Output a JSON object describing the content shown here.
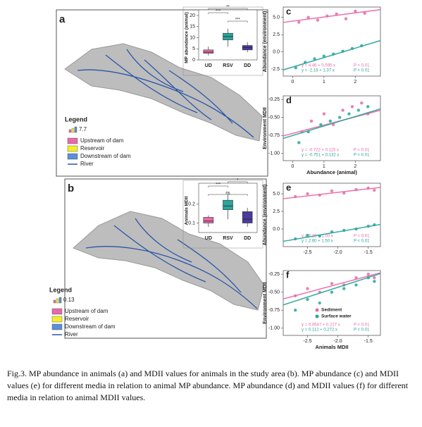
{
  "map_panels": [
    {
      "label": "a",
      "legend_title": "Legend",
      "scale_value": "7.7",
      "legend_items": [
        "Upstream of dam",
        "Reservoir",
        "Downstream of dam",
        "River"
      ]
    },
    {
      "label": "b",
      "legend_title": "Legend",
      "scale_value": "0.13",
      "legend_items": [
        "Upstream of dam",
        "Reservoir",
        "Downstream of dam",
        "River"
      ]
    }
  ],
  "chart_data": [
    {
      "type": "box",
      "ylabel": "MP abundance (animal)",
      "ylim": [
        0,
        20
      ],
      "yticks": [
        0,
        5,
        10,
        15,
        20
      ],
      "categories": [
        "UD",
        "RSV",
        "DD"
      ],
      "boxes": [
        {
          "color": "#e86aa8",
          "min": 2,
          "q1": 3,
          "median": 3.5,
          "q3": 4.5,
          "max": 6
        },
        {
          "color": "#2aa59b",
          "min": 6,
          "q1": 9,
          "median": 10.5,
          "q3": 12,
          "max": 14
        },
        {
          "color": "#4b3b9c",
          "min": 3.5,
          "q1": 4.5,
          "median": 5.5,
          "q3": 6.5,
          "max": 8
        }
      ],
      "comparisons": [
        {
          "pair": [
            "UD",
            "RSV"
          ],
          "label": "***"
        },
        {
          "pair": [
            "UD",
            "DD"
          ],
          "label": "**"
        },
        {
          "pair": [
            "RSV",
            "DD"
          ],
          "label": "***"
        }
      ]
    },
    {
      "type": "box",
      "ylabel": "Animals MDII",
      "ylim": [
        0.05,
        0.28
      ],
      "yticks": [
        0.1,
        0.2
      ],
      "categories": [
        "UD",
        "RSV",
        "DD"
      ],
      "boxes": [
        {
          "color": "#e86aa8",
          "min": 0.08,
          "q1": 0.1,
          "median": 0.11,
          "q3": 0.13,
          "max": 0.14
        },
        {
          "color": "#2aa59b",
          "min": 0.12,
          "q1": 0.17,
          "median": 0.19,
          "q3": 0.22,
          "max": 0.25
        },
        {
          "color": "#4b3b9c",
          "min": 0.08,
          "q1": 0.1,
          "median": 0.12,
          "q3": 0.16,
          "max": 0.18
        }
      ],
      "comparisons": [
        {
          "pair": [
            "UD",
            "RSV"
          ],
          "label": "***"
        },
        {
          "pair": [
            "RSV",
            "DD"
          ],
          "label": "*"
        },
        {
          "pair": [
            "UD",
            "DD"
          ],
          "label": "ns"
        }
      ]
    },
    {
      "type": "scatter",
      "label": "c",
      "ylabel": "Abundance (environment)",
      "xlim": [
        -0.3,
        2.8
      ],
      "xticks": [
        0,
        1,
        2
      ],
      "ylim": [
        -3.5,
        6.5
      ],
      "yticks": [
        -2.5,
        {
          "value": 0,
          "label": "0.0"
        },
        2.5,
        {
          "value": 5,
          "label": "5.0"
        }
      ],
      "legend": false,
      "series": [
        {
          "name": "Sediment",
          "color": "#e86aa8",
          "x": [
            0.2,
            0.5,
            0.8,
            1.1,
            1.4,
            1.7,
            2.0,
            2.3
          ],
          "values": [
            4.3,
            5.0,
            4.6,
            5.2,
            5.5,
            4.8,
            5.9,
            5.6
          ],
          "intercept": 4.46,
          "slope": 0.595,
          "equation": "y = 4.46 + 0.595 x",
          "p_label": "P < 0.01"
        },
        {
          "name": "Surface water",
          "color": "#2aa59b",
          "x": [
            0.1,
            0.4,
            0.7,
            1.0,
            1.3,
            1.6,
            1.9,
            2.2
          ],
          "values": [
            -2.3,
            -1.5,
            -1.0,
            -0.6,
            -0.3,
            0.1,
            0.5,
            0.9
          ],
          "intercept": -2.19,
          "slope": 1.37,
          "equation": "y = -2.19 + 1.37 x",
          "p_label": "P < 0.01"
        }
      ]
    },
    {
      "type": "scatter",
      "label": "d",
      "xlabel": "Abundance (animal)",
      "ylabel": "Environment MDII",
      "xlim": [
        -0.3,
        2.8
      ],
      "xticks": [
        0,
        1,
        2
      ],
      "ylim": [
        -1.1,
        -0.2
      ],
      "yticks": [
        {
          "value": -1,
          "label": "-1.00"
        },
        -0.75,
        {
          "value": -0.5,
          "label": "-0.50"
        },
        -0.25
      ],
      "legend": false,
      "series": [
        {
          "name": "Sediment",
          "color": "#e86aa8",
          "x": [
            0.3,
            0.6,
            1.0,
            1.3,
            1.6,
            1.9,
            2.2,
            2.4
          ],
          "values": [
            -0.7,
            -0.55,
            -0.45,
            -0.6,
            -0.4,
            -0.35,
            -0.3,
            -0.45
          ],
          "intercept": -0.722,
          "slope": 0.115,
          "equation": "y = -0.722 + 0.115 x",
          "p_label": "P < 0.01"
        },
        {
          "name": "Surface water",
          "color": "#2aa59b",
          "x": [
            0.2,
            0.5,
            0.9,
            1.2,
            1.5,
            1.8,
            2.1,
            2.4
          ],
          "values": [
            -0.85,
            -0.7,
            -0.6,
            -0.55,
            -0.5,
            -0.45,
            -0.4,
            -0.35
          ],
          "intercept": -0.751,
          "slope": 0.132,
          "equation": "y = -0.751 + 0.132 x",
          "p_label": "P < 0.01"
        }
      ]
    },
    {
      "type": "scatter",
      "label": "e",
      "ylabel": "Abundance (environment)",
      "xlim": [
        -2.9,
        -1.3
      ],
      "xticks": [
        -2.5,
        {
          "value": -2,
          "label": "-2.0"
        },
        -1.5
      ],
      "ylim": [
        -2.5,
        6.5
      ],
      "yticks": [
        {
          "value": 0,
          "label": "0.0"
        },
        2.5,
        {
          "value": 5,
          "label": "5.0"
        }
      ],
      "legend": false,
      "series": [
        {
          "name": "Sediment",
          "color": "#e86aa8",
          "x": [
            -2.7,
            -2.5,
            -2.3,
            -2.1,
            -1.9,
            -1.7,
            -1.5,
            -1.4
          ],
          "values": [
            4.6,
            5.0,
            4.8,
            5.4,
            5.1,
            5.6,
            5.8,
            5.5
          ],
          "intercept": 7.2,
          "slope": 1.0,
          "equation": "y = 7.20 + 1.00 x",
          "p_label": "P < 0.01"
        },
        {
          "name": "Surface water",
          "color": "#2aa59b",
          "x": [
            -2.7,
            -2.5,
            -2.3,
            -2.1,
            -1.9,
            -1.7,
            -1.5,
            -1.4
          ],
          "values": [
            -1.4,
            -0.9,
            -1.0,
            -0.4,
            -0.2,
            0.0,
            0.4,
            0.6
          ],
          "intercept": 2.6,
          "slope": 1.5,
          "equation": "y = 2.60 + 1.50 x",
          "p_label": "P < 0.01"
        }
      ]
    },
    {
      "type": "scatter",
      "label": "f",
      "xlabel": "Animals MDII",
      "ylabel": "Environment MDII",
      "xlim": [
        -2.9,
        -1.3
      ],
      "xticks": [
        -2.5,
        {
          "value": -2,
          "label": "-2.0"
        },
        -1.5
      ],
      "ylim": [
        -1.1,
        -0.2
      ],
      "yticks": [
        {
          "value": -1,
          "label": "-1.00"
        },
        -0.75,
        {
          "value": -0.5,
          "label": "-0.50"
        },
        -0.25
      ],
      "legend": true,
      "series": [
        {
          "name": "Sediment",
          "color": "#e86aa8",
          "x": [
            -2.7,
            -2.5,
            -2.3,
            -2.1,
            -1.9,
            -1.7,
            -1.5,
            -1.4
          ],
          "values": [
            -0.55,
            -0.45,
            -0.5,
            -0.38,
            -0.4,
            -0.3,
            -0.25,
            -0.3
          ],
          "intercept": 0.0647,
          "slope": 0.227,
          "equation": "y = 0.0647 + 0.227 x",
          "p_label": "P < 0.01"
        },
        {
          "name": "Surface water",
          "color": "#2aa59b",
          "x": [
            -2.7,
            -2.5,
            -2.3,
            -2.1,
            -1.9,
            -1.7,
            -1.5,
            -1.4
          ],
          "values": [
            -0.75,
            -0.6,
            -0.65,
            -0.5,
            -0.45,
            -0.4,
            -0.3,
            -0.35
          ],
          "intercept": 0.112,
          "slope": 0.272,
          "equation": "y = 0.112 + 0.272 x",
          "p_label": "P < 0.01"
        }
      ]
    }
  ],
  "caption": "Fig.3. MP abundance in animals (a) and MDII values for animals in the study area (b). MP abundance (c) and MDII values (e) for different media in relation to animal MP abundance. MP abundance (d) and MDII values (f) for different media in relation to animal MDII values."
}
